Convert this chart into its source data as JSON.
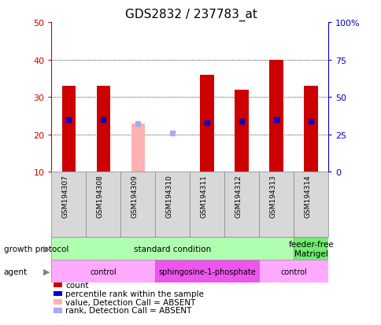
{
  "title": "GDS2832 / 237783_at",
  "samples": [
    "GSM194307",
    "GSM194308",
    "GSM194309",
    "GSM194310",
    "GSM194311",
    "GSM194312",
    "GSM194313",
    "GSM194314"
  ],
  "count_values": [
    33,
    33,
    null,
    10,
    36,
    32,
    40,
    33
  ],
  "count_absent": [
    null,
    null,
    23,
    null,
    null,
    null,
    null,
    null
  ],
  "percentile_values": [
    35,
    35,
    null,
    null,
    33,
    34,
    35,
    34
  ],
  "percentile_absent": [
    null,
    null,
    32,
    26,
    null,
    null,
    null,
    null
  ],
  "ylim_left": [
    10,
    50
  ],
  "ylim_right": [
    0,
    100
  ],
  "yticks_left": [
    10,
    20,
    30,
    40,
    50
  ],
  "yticks_right": [
    0,
    25,
    50,
    75,
    100
  ],
  "ytick_labels_right": [
    "0",
    "25",
    "50",
    "75",
    "100%"
  ],
  "count_color": "#cc0000",
  "count_absent_color": "#ffb0b0",
  "percentile_color": "#0000cc",
  "percentile_absent_color": "#aaaaee",
  "bar_width": 0.4,
  "gp_groups": [
    {
      "label": "standard condition",
      "start": 0,
      "end": 7,
      "color": "#b0ffb0"
    },
    {
      "label": "feeder-free\nMatrigel",
      "start": 7,
      "end": 8,
      "color": "#70ee70"
    }
  ],
  "ag_groups": [
    {
      "label": "control",
      "start": 0,
      "end": 3,
      "color": "#ffaaff"
    },
    {
      "label": "sphingosine-1-phosphate",
      "start": 3,
      "end": 6,
      "color": "#ee55ee"
    },
    {
      "label": "control",
      "start": 6,
      "end": 8,
      "color": "#ffaaff"
    }
  ],
  "legend_items": [
    {
      "color": "#cc0000",
      "label": "count"
    },
    {
      "color": "#0000cc",
      "label": "percentile rank within the sample"
    },
    {
      "color": "#ffb0b0",
      "label": "value, Detection Call = ABSENT"
    },
    {
      "color": "#aaaaee",
      "label": "rank, Detection Call = ABSENT"
    }
  ],
  "tick_color_left": "#cc0000",
  "tick_color_right": "#0000cc",
  "grid_color": "#000000",
  "sample_box_color": "#d8d8d8",
  "sample_box_edge": "#888888"
}
